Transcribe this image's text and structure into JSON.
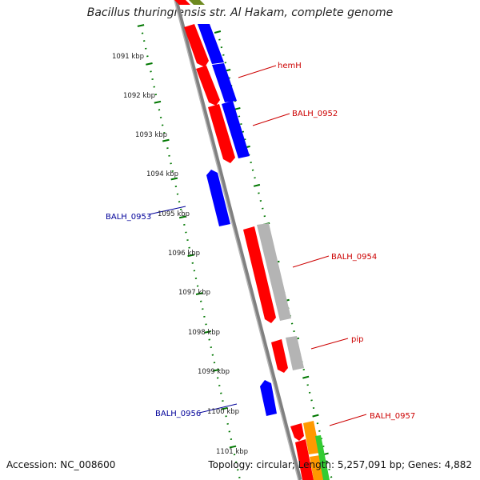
{
  "title": "Bacillus thuringiensis str. Al Hakam, complete genome",
  "footer": {
    "accession": "Accession: NC_008600",
    "summary": "Topology: circular; Length: 5,257,091 bp; Genes: 4,882"
  },
  "colors": {
    "forward_gene": "#ff0000",
    "reverse_gene": "#0000ff",
    "other_gene": "#b0b0b0",
    "tick": "#007700",
    "backbone": "#7f7f7f",
    "label_forward": "#cc0000",
    "label_reverse": "#000099"
  },
  "scale_ticks": [
    "1091 kbp",
    "1092 kbp",
    "1093 kbp",
    "1094 kbp",
    "1095 kbp",
    "1096 kbp",
    "1097 kbp",
    "1098 kbp",
    "1099 kbp",
    "1100 kbp",
    "1101 kbp"
  ],
  "gene_labels": {
    "hemH": "hemH",
    "balh_0952": "BALH_0952",
    "balh_0953": "BALH_0953",
    "balh_0954": "BALH_0954",
    "pip": "pip",
    "balh_0956": "BALH_0956",
    "balh_0957": "BALH_0957"
  }
}
